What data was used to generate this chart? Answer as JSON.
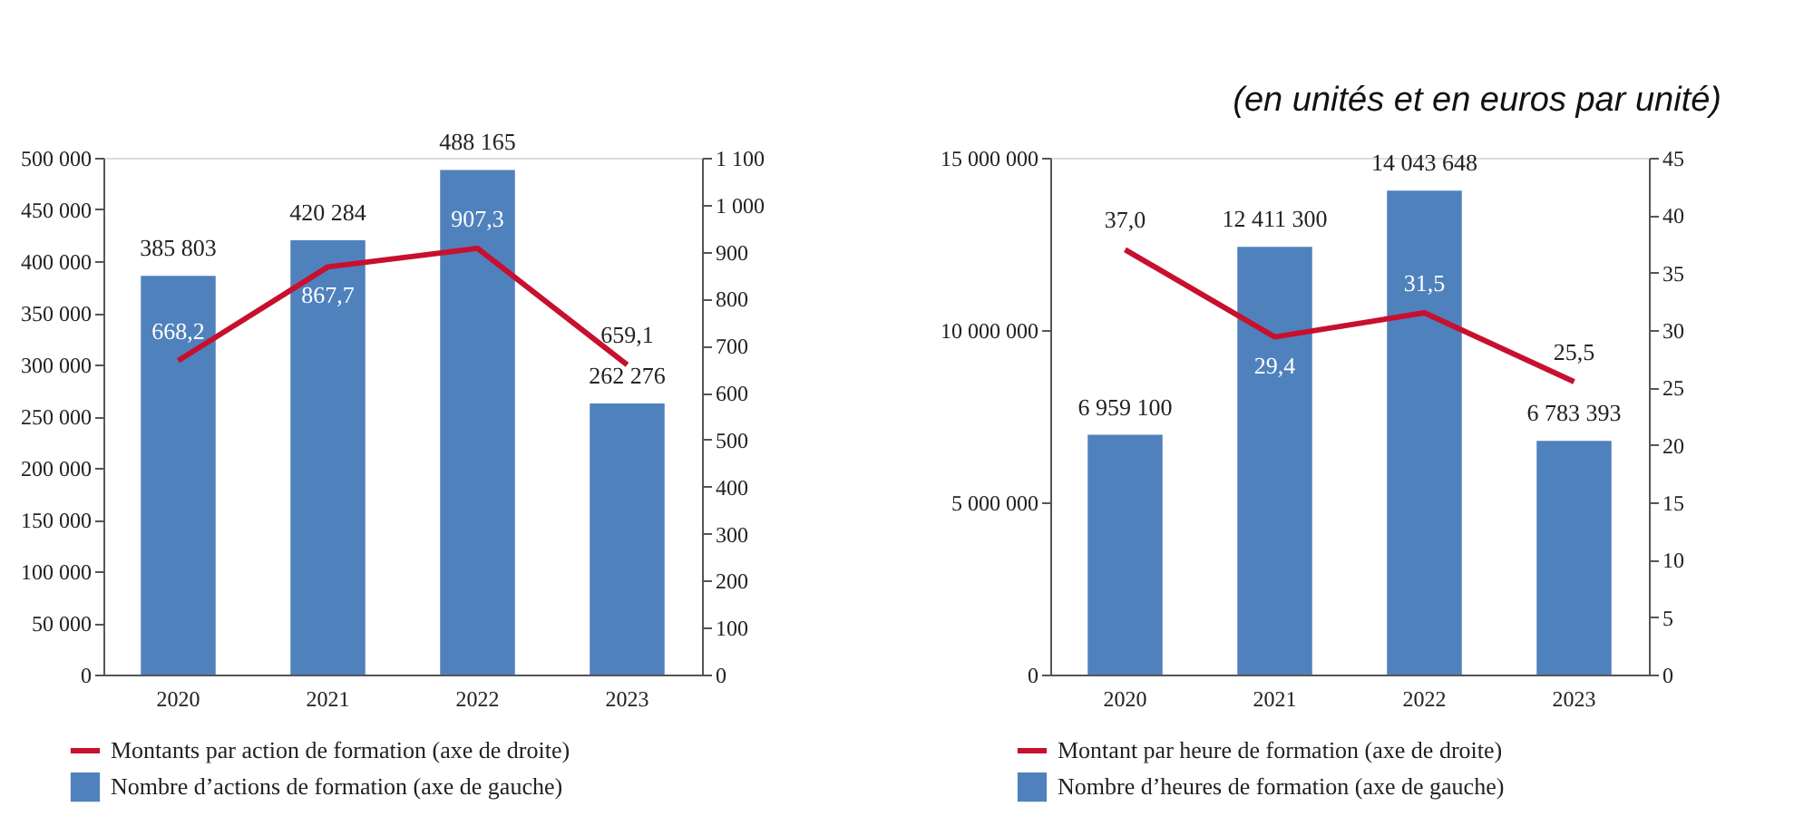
{
  "chart_data": [
    {
      "type": "bar",
      "categories": [
        "2020",
        "2021",
        "2022",
        "2023"
      ],
      "series": [
        {
          "name": "Montants par action de formation (axe de droite)",
          "type": "line",
          "axis": "y2",
          "color": "#c8102e",
          "values": [
            668.2,
            867.7,
            907.3,
            659.1
          ],
          "value_labels": [
            "668,2",
            "867,7",
            "907,3",
            "659,1"
          ]
        },
        {
          "name": "Nombre d’actions de formation (axe de gauche)",
          "type": "bar",
          "color": "#4f81bd",
          "values": [
            385803,
            420284,
            488165,
            262276
          ],
          "value_labels": [
            "385 803",
            "420 284",
            "488 165",
            "262 276"
          ]
        }
      ],
      "ylim": [
        0,
        500000
      ],
      "yticks": [
        0,
        {
          "value": 50000,
          "label": "50 000"
        },
        {
          "value": 100000,
          "label": "100 000"
        },
        {
          "value": 150000,
          "label": "150 000"
        },
        {
          "value": 200000,
          "label": "200 000"
        },
        {
          "value": 250000,
          "label": "250 000"
        },
        {
          "value": 300000,
          "label": "300 000"
        },
        {
          "value": 350000,
          "label": "350 000"
        },
        {
          "value": 400000,
          "label": "400 000"
        },
        {
          "value": 450000,
          "label": "450 000"
        },
        {
          "value": 500000,
          "label": "500 000"
        }
      ],
      "y2lim": [
        0,
        1100
      ],
      "y2ticks": [
        0,
        100,
        200,
        300,
        400,
        500,
        600,
        700,
        800,
        900,
        {
          "value": 1000,
          "label": "1 000"
        },
        {
          "value": 1100,
          "label": "1 100"
        }
      ],
      "legend": "bottom",
      "grid": false
    },
    {
      "type": "bar",
      "categories": [
        "2020",
        "2021",
        "2022",
        "2023"
      ],
      "series": [
        {
          "name": "Montant par heure de formation (axe de droite)",
          "type": "line",
          "axis": "y2",
          "color": "#c8102e",
          "values": [
            37.0,
            29.4,
            31.5,
            25.5
          ],
          "value_labels": [
            "37,0",
            "29,4",
            "31,5",
            "25,5"
          ]
        },
        {
          "name": "Nombre d’heures de formation (axe de gauche)",
          "type": "bar",
          "color": "#4f81bd",
          "values": [
            6959100,
            12411300,
            14043648,
            6783393
          ],
          "value_labels": [
            "6 959 100",
            "12 411 300",
            "14 043 648",
            "6 783 393"
          ]
        }
      ],
      "ylim": [
        0,
        15000000
      ],
      "yticks": [
        0,
        {
          "value": 5000000,
          "label": "5 000 000"
        },
        {
          "value": 10000000,
          "label": "10 000 000"
        },
        {
          "value": 15000000,
          "label": "15 000 000"
        }
      ],
      "y2lim": [
        0,
        45
      ],
      "y2ticks": [
        0,
        5,
        10,
        15,
        20,
        25,
        30,
        35,
        40,
        45
      ],
      "legend": "bottom",
      "grid": false,
      "annotations": [
        "(en unités et en euros par unité)"
      ]
    }
  ]
}
